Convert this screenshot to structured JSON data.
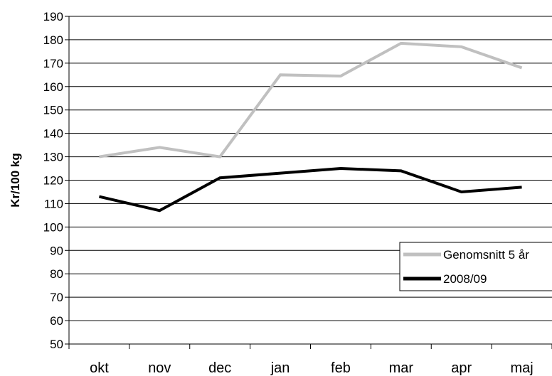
{
  "colors": {
    "series_avg": "#c0c0c0",
    "series_2008": "#000000",
    "grid": "#000000"
  },
  "chart_data": {
    "type": "line",
    "title": "",
    "xlabel": "",
    "ylabel": "Kr/100 kg",
    "categories": [
      "okt",
      "nov",
      "dec",
      "jan",
      "feb",
      "mar",
      "apr",
      "maj"
    ],
    "ylim": [
      50,
      190
    ],
    "ytick_step": 10,
    "y_ticks": [
      "50",
      "60",
      "70",
      "80",
      "90",
      "100",
      "110",
      "120",
      "130",
      "140",
      "150",
      "160",
      "170",
      "180",
      "190"
    ],
    "grid": true,
    "legend_position": "bottom-right",
    "series": [
      {
        "name": "Genomsnitt 5 år",
        "values": [
          130,
          134,
          130,
          165,
          164.5,
          178.5,
          177,
          168
        ]
      },
      {
        "name": "2008/09",
        "values": [
          113,
          107,
          121,
          123,
          125,
          124,
          115,
          117
        ]
      }
    ]
  }
}
